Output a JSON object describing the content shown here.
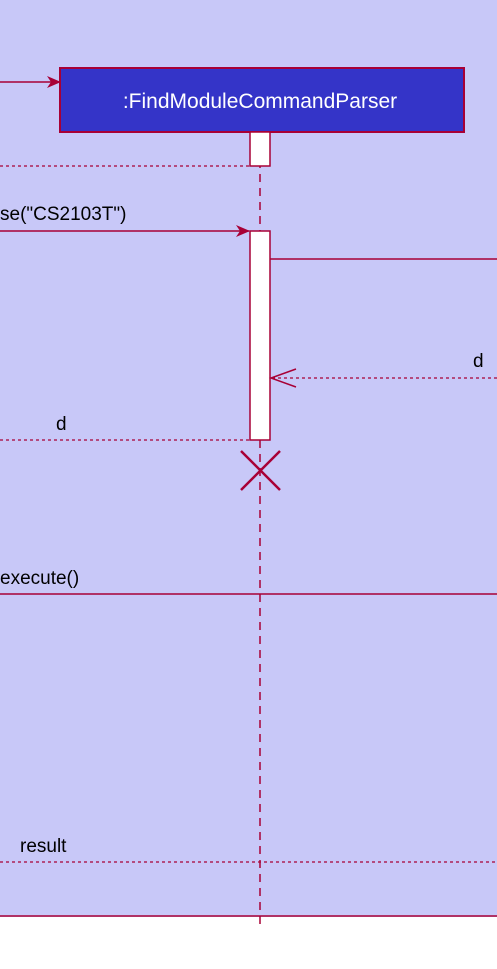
{
  "diagram": {
    "lifeline_object": ":FindModuleCommandParser",
    "messages": {
      "incoming_create": "",
      "parse_call": "se(\"CS2103T\")",
      "inner_return": "d",
      "parse_return": "d",
      "execute_call": "execute()",
      "result_return": "result"
    },
    "colors": {
      "frame_background": "#c8c8f8",
      "object_fill": "#3434c8",
      "object_border": "#a80036",
      "line_color": "#a80036",
      "activation_fill": "#ffffff"
    },
    "icons": {
      "destroy": "destroy-x-icon"
    }
  }
}
